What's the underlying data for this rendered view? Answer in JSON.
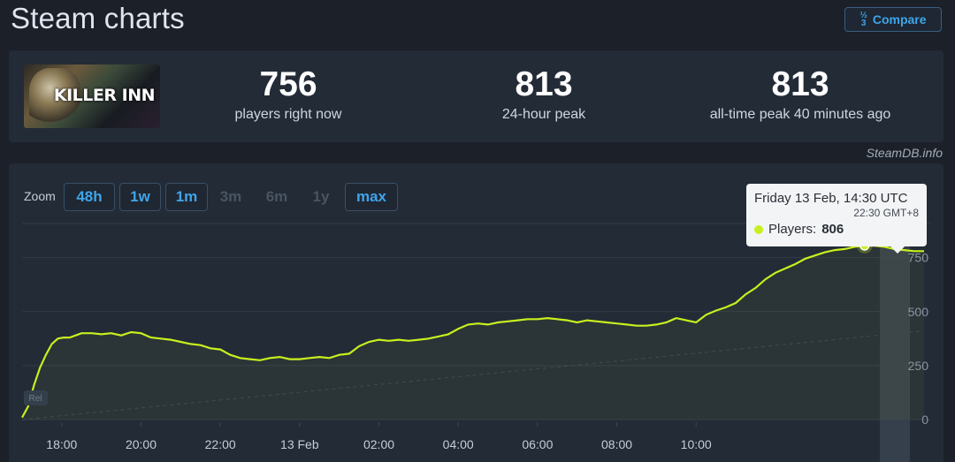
{
  "header": {
    "title": "Steam charts",
    "compare_label": "Compare",
    "compare_icon": "1/2/3 compare icon"
  },
  "stats": {
    "game_logo_text": "KILLER INN",
    "items": [
      {
        "value": "756",
        "label": "players right now"
      },
      {
        "value": "813",
        "label": "24-hour peak"
      },
      {
        "value": "813",
        "label": "all-time peak 40 minutes ago"
      }
    ]
  },
  "attribution": "SteamDB.info",
  "zoom": {
    "label": "Zoom",
    "buttons": [
      {
        "label": "48h",
        "enabled": true
      },
      {
        "label": "1w",
        "enabled": true
      },
      {
        "label": "1m",
        "enabled": true
      },
      {
        "label": "3m",
        "enabled": false
      },
      {
        "label": "6m",
        "enabled": false
      },
      {
        "label": "1y",
        "enabled": false
      },
      {
        "label": "max",
        "enabled": true
      }
    ]
  },
  "tooltip": {
    "title": "Friday 13 Feb, 14:30 UTC",
    "subtitle": "22:30 GMT+8",
    "series_label": "Players:",
    "value": "806"
  },
  "colors": {
    "line": "#c8f01e",
    "accent": "#3fa5ea",
    "background": "#1b2029",
    "panel": "#232b37"
  },
  "chart_data": {
    "type": "line",
    "x_tick_labels": [
      "18:00",
      "20:00",
      "22:00",
      "13 Feb",
      "02:00",
      "04:00",
      "06:00",
      "08:00",
      "10:00"
    ],
    "y_tick_labels": [
      "0",
      "250",
      "500",
      "750"
    ],
    "ylim": [
      0,
      900
    ],
    "grid": true,
    "x_unit": "hours since 17:00 (12 Feb)",
    "series": [
      {
        "name": "Players",
        "x": [
          0,
          0.15,
          0.3,
          0.45,
          0.6,
          0.75,
          0.9,
          1.05,
          1.2,
          1.35,
          1.5,
          1.75,
          2.0,
          2.25,
          2.5,
          2.75,
          3.0,
          3.25,
          3.5,
          3.75,
          4.0,
          4.25,
          4.5,
          4.75,
          5.0,
          5.25,
          5.5,
          5.75,
          6.0,
          6.25,
          6.5,
          6.75,
          7.0,
          7.25,
          7.5,
          7.75,
          8.0,
          8.25,
          8.5,
          8.75,
          9.0,
          9.25,
          9.5,
          9.75,
          10.0,
          10.25,
          10.5,
          10.75,
          11.0,
          11.25,
          11.5,
          11.75,
          12.0,
          12.25,
          12.5,
          12.75,
          13.0,
          13.25,
          13.5,
          13.75,
          14.0,
          14.25,
          14.5,
          14.75,
          15.0,
          15.25,
          15.5,
          15.75,
          16.0,
          16.25,
          16.5,
          16.75,
          17.0,
          17.25,
          17.5,
          17.75,
          18.0,
          18.25,
          18.5,
          18.75,
          19.0,
          19.25,
          19.5,
          19.75,
          20.0,
          20.25,
          20.5,
          20.75,
          21.0,
          21.25,
          21.5,
          21.75,
          22.0,
          22.25,
          22.5,
          22.75
        ],
        "y": [
          10,
          60,
          160,
          240,
          300,
          350,
          375,
          380,
          380,
          390,
          400,
          400,
          395,
          400,
          390,
          405,
          400,
          380,
          375,
          370,
          360,
          350,
          345,
          330,
          325,
          300,
          285,
          280,
          275,
          285,
          290,
          280,
          280,
          285,
          290,
          285,
          300,
          305,
          340,
          360,
          370,
          365,
          370,
          365,
          370,
          375,
          385,
          395,
          420,
          440,
          445,
          440,
          450,
          455,
          460,
          465,
          465,
          470,
          465,
          460,
          450,
          460,
          455,
          450,
          445,
          440,
          435,
          435,
          440,
          450,
          470,
          460,
          450,
          485,
          505,
          520,
          540,
          580,
          610,
          650,
          680,
          700,
          720,
          745,
          760,
          775,
          785,
          790,
          800,
          806,
          805,
          800,
          790,
          785,
          780,
          780
        ]
      }
    ],
    "highlighted_point": {
      "label": "Friday 13 Feb, 14:30 UTC",
      "value": 806
    }
  }
}
